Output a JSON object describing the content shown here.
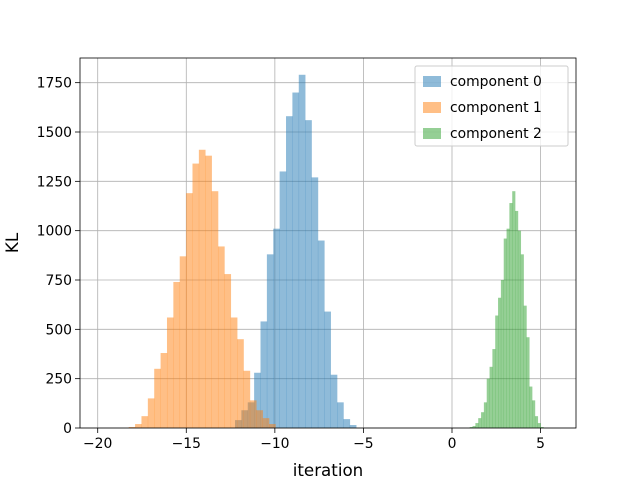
{
  "chart_data": {
    "type": "histogram",
    "title": "",
    "xlabel": "iteration",
    "ylabel": "KL",
    "xlim": [
      -21.0,
      7.0
    ],
    "ylim": [
      0,
      1875
    ],
    "xticks": [
      -20,
      -15,
      -10,
      -5,
      0,
      5
    ],
    "xtick_labels": [
      "−20",
      "−15",
      "−10",
      "−5",
      "0",
      "5"
    ],
    "yticks": [
      0,
      250,
      500,
      750,
      1000,
      1250,
      1500,
      1750
    ],
    "ytick_labels": [
      "0",
      "250",
      "500",
      "750",
      "1000",
      "1250",
      "1500",
      "1750"
    ],
    "grid": true,
    "legend_position": "top-right",
    "bar_alpha": 0.5,
    "series": [
      {
        "name": "component 0",
        "color": "#1f77b4",
        "bin_start": -12.25,
        "bin_width": 0.36,
        "counts": [
          40,
          90,
          130,
          280,
          540,
          880,
          1010,
          1300,
          1580,
          1700,
          1790,
          1560,
          1270,
          950,
          590,
          270,
          130,
          45,
          15
        ]
      },
      {
        "name": "component 1",
        "color": "#ff7f0e",
        "bin_start": -18.25,
        "bin_width": 0.36,
        "counts": [
          5,
          20,
          60,
          150,
          300,
          380,
          560,
          740,
          870,
          1190,
          1340,
          1410,
          1380,
          1200,
          920,
          780,
          560,
          450,
          290,
          140,
          90,
          50,
          20
        ]
      },
      {
        "name": "component 2",
        "color": "#2ca02c",
        "bin_start": 1.0,
        "bin_width": 0.16,
        "counts": [
          5,
          10,
          25,
          50,
          80,
          130,
          250,
          310,
          400,
          570,
          660,
          750,
          960,
          1010,
          1140,
          1200,
          1100,
          1000,
          880,
          620,
          460,
          210,
          140,
          60,
          25,
          5
        ]
      }
    ]
  }
}
